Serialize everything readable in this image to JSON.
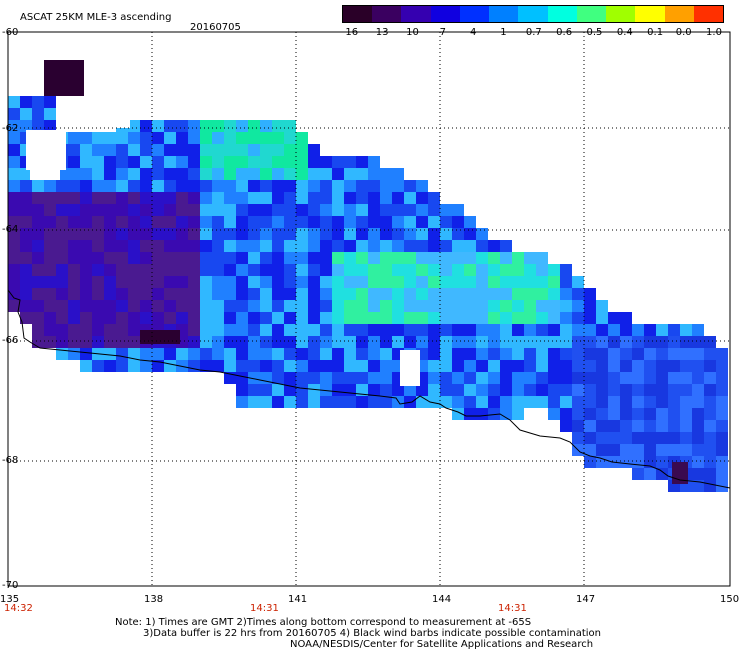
{
  "header": {
    "title": "ASCAT 25KM MLE-3 ascending",
    "date": "20160705"
  },
  "colorbar": {
    "labels": [
      "-16",
      "-13",
      "-10",
      "-7",
      "-4",
      "-1",
      "-0.7",
      "-0.6",
      "-0.5",
      "-0.4",
      "-0.1",
      "0.0",
      "1.0"
    ],
    "colors": [
      "#2a0028",
      "#3a0060",
      "#3500b0",
      "#1000e0",
      "#0030ff",
      "#0080ff",
      "#00c0ff",
      "#00ffe0",
      "#40ff80",
      "#a0ff00",
      "#ffff00",
      "#ffa000",
      "#ff3000"
    ]
  },
  "axes": {
    "lat_labels": [
      "-60",
      "-62",
      "-64",
      "-66",
      "-68",
      "-70"
    ],
    "lon_labels": [
      "135",
      "138",
      "141",
      "144",
      "147",
      "150"
    ],
    "time_labels": [
      "14:32",
      "14:31",
      "14:31"
    ]
  },
  "notes": {
    "line1": "Note: 1) Times are GMT 2)Times along bottom correspond to measurement at -65S",
    "line2": "3)Data buffer is 22 hrs from 20160705 4) Black wind barbs indicate possible contamination",
    "line3": "NOAA/NESDIS/Center for Satellite Applications and Research"
  },
  "colors": {
    "coastline": "#000000",
    "grid": "#000000",
    "time_text": "#cc2200"
  }
}
